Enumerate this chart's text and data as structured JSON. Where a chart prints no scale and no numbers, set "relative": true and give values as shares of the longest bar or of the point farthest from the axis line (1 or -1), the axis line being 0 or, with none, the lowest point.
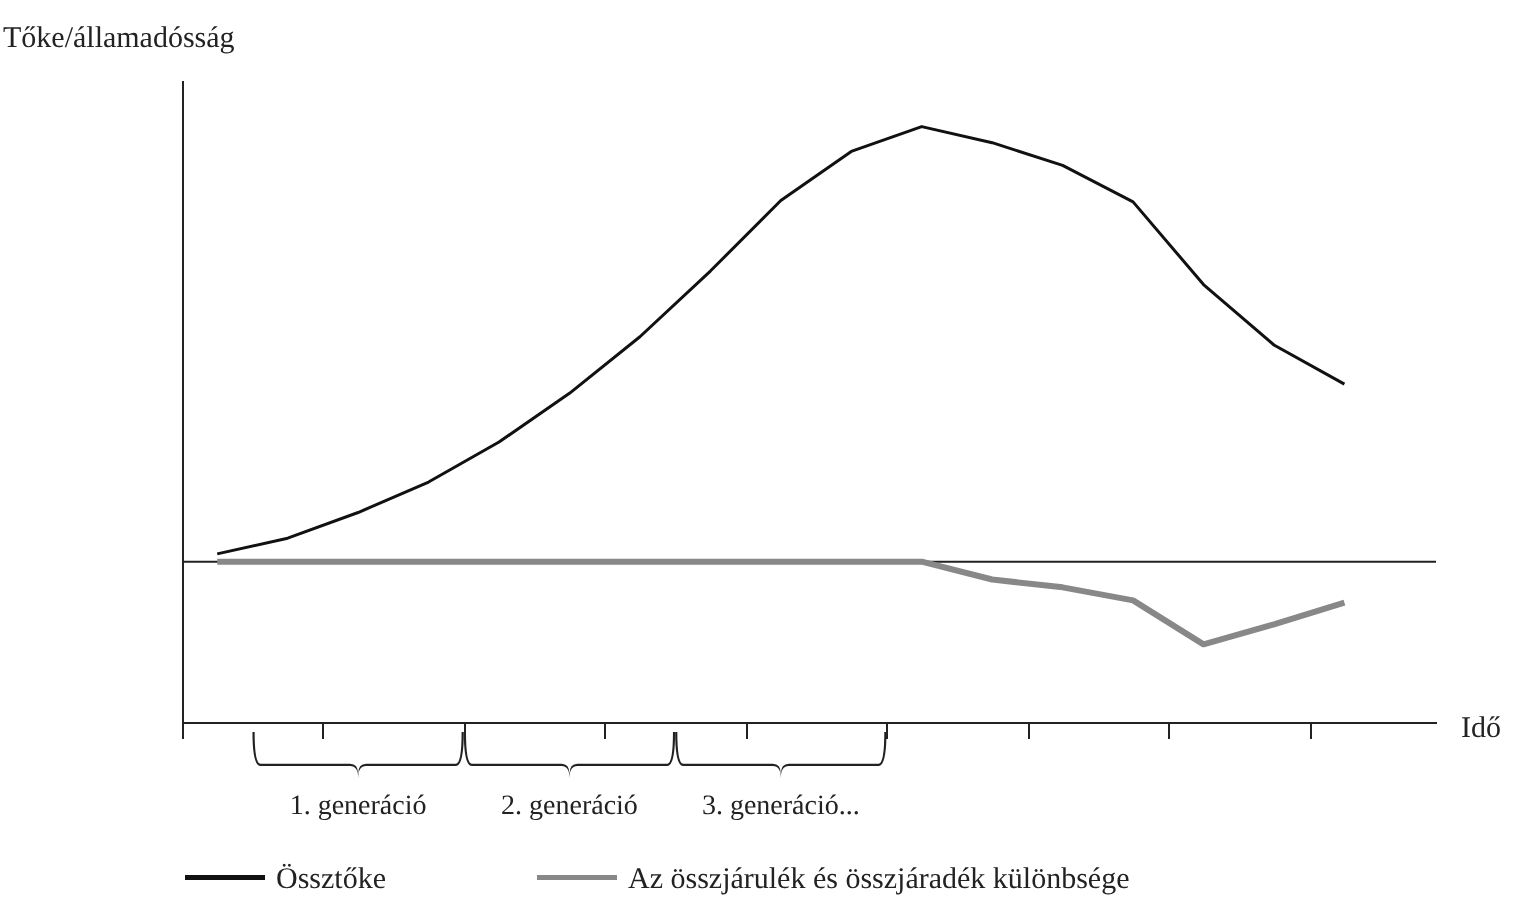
{
  "chart_data": {
    "type": "line",
    "relative": true,
    "ylabel": "Tőke/államadósság",
    "xlabel": "Idő",
    "categories": [
      null,
      null,
      null,
      null,
      null,
      null,
      null,
      null,
      null,
      null,
      null,
      null,
      null,
      null,
      null,
      null,
      null
    ],
    "series": [
      {
        "name": "Össztőke",
        "color": "#111111",
        "values": [
          0.018,
          0.054,
          0.113,
          0.183,
          0.275,
          0.387,
          0.517,
          0.668,
          0.83,
          0.943,
          1,
          0.963,
          0.911,
          0.827,
          0.637,
          0.498,
          0.408
        ]
      },
      {
        "name": "Az összjárulék és összjáradék különbsége",
        "color": "#888888",
        "values": [
          0,
          0,
          0,
          0,
          0,
          0,
          0,
          0,
          0,
          0,
          0,
          -0.041,
          -0.059,
          -0.089,
          -0.19,
          -0.144,
          -0.094
        ]
      }
    ],
    "annotations": [
      "1. generáció",
      "2. generáció",
      "3. generáció..."
    ],
    "legend": "bottom",
    "grid": false,
    "marker": "none",
    "line_style": "solid"
  }
}
